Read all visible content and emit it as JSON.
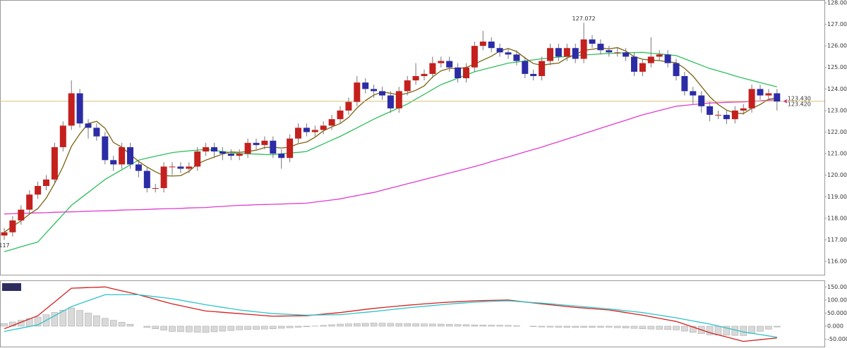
{
  "chart_data": [
    {
      "type": "candlestick",
      "ylim": [
        115.38,
        128.13
      ],
      "yticks": [
        {
          "value": 116,
          "label": "116.000"
        },
        {
          "value": 117,
          "label": "117.000"
        },
        {
          "value": 118,
          "label": "118.000"
        },
        {
          "value": 119,
          "label": "119.000"
        },
        {
          "value": 120,
          "label": "120.000"
        },
        {
          "value": 121,
          "label": "121.000"
        },
        {
          "value": 122,
          "label": "122.000"
        },
        {
          "value": 123,
          "label": "123.000"
        },
        {
          "value": 124,
          "label": "124.000"
        },
        {
          "value": 125,
          "label": "125.000"
        },
        {
          "value": 126,
          "label": "126.000"
        },
        {
          "value": 127,
          "label": "127.000"
        },
        {
          "value": 128,
          "label": "128.000"
        }
      ],
      "up_color": "#c4201e",
      "down_color": "#2c2ca6",
      "wick_color": "#777777",
      "open": [
        117.2,
        117.35,
        117.9,
        118.4,
        119.1,
        119.5,
        119.8,
        121.3,
        122.3,
        123.8,
        122.4,
        122.2,
        121.8,
        120.7,
        120.5,
        121.3,
        120.5,
        120.2,
        119.4,
        119.4,
        120.4,
        120.4,
        120.3,
        120.4,
        121.1,
        121.3,
        121.1,
        121.0,
        120.9,
        121.0,
        121.5,
        121.4,
        121.6,
        121.0,
        120.8,
        121.7,
        122.2,
        122.0,
        122.1,
        122.3,
        122.6,
        123.0,
        123.4,
        124.3,
        124.0,
        123.9,
        123.7,
        123.1,
        123.9,
        124.4,
        124.6,
        124.7,
        125.2,
        125.3,
        125.0,
        124.5,
        125.0,
        126.0,
        126.2,
        125.9,
        125.7,
        125.6,
        125.3,
        124.7,
        124.6,
        125.3,
        125.9,
        125.5,
        125.9,
        125.4,
        126.3,
        126.1,
        125.8,
        125.7,
        125.7,
        125.5,
        124.8,
        125.2,
        125.5,
        125.6,
        125.2,
        124.6,
        123.9,
        123.7,
        123.2,
        122.8,
        122.8,
        122.6,
        123.0,
        123.1,
        124.0,
        123.7,
        123.8
      ],
      "high": [
        117.55,
        118.1,
        118.6,
        119.3,
        119.7,
        120.0,
        121.5,
        122.5,
        124.4,
        124.0,
        122.6,
        122.4,
        122.0,
        120.9,
        121.5,
        121.5,
        120.7,
        120.4,
        119.6,
        120.6,
        120.6,
        120.6,
        120.6,
        121.3,
        121.5,
        121.5,
        121.3,
        121.2,
        121.2,
        121.7,
        121.7,
        121.8,
        121.8,
        121.2,
        121.9,
        122.4,
        122.4,
        122.3,
        122.5,
        122.8,
        123.2,
        123.6,
        124.6,
        124.5,
        124.2,
        124.1,
        123.9,
        124.1,
        124.6,
        125.2,
        124.9,
        125.5,
        125.5,
        125.5,
        125.2,
        125.2,
        126.2,
        126.7,
        126.4,
        126.1,
        125.9,
        125.8,
        125.5,
        124.9,
        125.5,
        126.1,
        126.1,
        126.1,
        126.1,
        127.072,
        126.5,
        126.3,
        126.0,
        125.9,
        125.9,
        125.7,
        125.4,
        126.4,
        125.8,
        125.8,
        125.4,
        124.8,
        124.1,
        123.9,
        123.4,
        123.0,
        123.0,
        123.2,
        123.3,
        124.2,
        124.2,
        124.0,
        124.0
      ],
      "low": [
        117.0,
        117.15,
        117.7,
        118.2,
        118.9,
        119.3,
        119.6,
        121.1,
        122.1,
        122.2,
        121.7,
        121.6,
        120.5,
        120.2,
        120.3,
        120.3,
        119.9,
        119.2,
        119.2,
        119.2,
        120.0,
        120.1,
        120.1,
        120.2,
        120.9,
        120.8,
        120.7,
        120.7,
        120.7,
        120.8,
        121.2,
        121.2,
        120.8,
        120.3,
        120.6,
        121.5,
        121.8,
        121.8,
        121.9,
        122.1,
        122.4,
        122.8,
        123.2,
        123.8,
        123.6,
        123.5,
        122.9,
        122.9,
        123.7,
        124.2,
        124.4,
        124.5,
        125.0,
        124.8,
        124.3,
        124.3,
        124.8,
        125.8,
        125.7,
        125.5,
        125.4,
        125.1,
        124.5,
        124.4,
        124.4,
        125.1,
        125.3,
        125.3,
        125.2,
        125.2,
        125.9,
        125.6,
        125.5,
        125.5,
        125.3,
        124.6,
        124.6,
        125.0,
        125.3,
        125.0,
        124.4,
        123.7,
        123.3,
        122.9,
        122.5,
        122.6,
        122.378,
        122.4,
        122.8,
        122.9,
        123.5,
        123.5,
        123.0
      ],
      "close": [
        117.35,
        117.9,
        118.4,
        119.1,
        119.5,
        119.8,
        121.3,
        122.3,
        123.8,
        122.4,
        122.2,
        121.8,
        120.7,
        120.5,
        121.3,
        120.5,
        120.2,
        119.4,
        119.4,
        120.4,
        120.4,
        120.3,
        120.4,
        121.1,
        121.3,
        121.1,
        121.0,
        120.9,
        121.0,
        121.5,
        121.4,
        121.6,
        121.0,
        120.8,
        121.7,
        122.2,
        122.0,
        122.1,
        122.3,
        122.6,
        123.0,
        123.4,
        124.3,
        124.0,
        123.9,
        123.7,
        123.1,
        123.9,
        124.4,
        124.6,
        124.7,
        125.2,
        125.3,
        125.0,
        124.5,
        125.0,
        126.0,
        126.2,
        125.9,
        125.7,
        125.6,
        125.3,
        124.7,
        124.6,
        125.3,
        125.9,
        125.5,
        125.9,
        125.4,
        126.3,
        126.1,
        125.8,
        125.7,
        125.7,
        125.5,
        124.8,
        125.2,
        125.5,
        125.6,
        125.2,
        124.6,
        123.9,
        123.7,
        123.2,
        122.8,
        122.8,
        122.6,
        123.0,
        123.1,
        124.0,
        123.7,
        123.8,
        123.42
      ],
      "lines": [
        {
          "color": "#2fbf5c",
          "values": [
            116.45,
            116.56,
            116.68,
            116.79,
            116.9,
            117.33,
            117.75,
            118.18,
            118.6,
            118.9,
            119.2,
            119.5,
            119.8,
            120.03,
            120.25,
            120.48,
            120.7,
            120.79,
            120.88,
            120.96,
            121.05,
            121.09,
            121.13,
            121.16,
            121.2,
            121.15,
            121.1,
            121.05,
            121.0,
            120.99,
            120.98,
            120.96,
            120.95,
            120.99,
            121.03,
            121.06,
            121.1,
            121.28,
            121.45,
            121.63,
            121.8,
            122.0,
            122.2,
            122.4,
            122.6,
            122.78,
            122.95,
            123.13,
            123.3,
            123.53,
            123.75,
            123.98,
            124.2,
            124.35,
            124.5,
            124.65,
            124.8,
            124.9,
            125.0,
            125.1,
            125.2,
            125.25,
            125.3,
            125.35,
            125.4,
            125.44,
            125.48,
            125.51,
            125.55,
            125.58,
            125.6,
            125.63,
            125.65,
            125.66,
            125.68,
            125.69,
            125.7,
            125.66,
            125.63,
            125.59,
            125.55,
            125.4,
            125.25,
            125.1,
            124.95,
            124.84,
            124.73,
            124.61,
            124.5,
            124.4,
            124.3,
            124.2,
            124.1
          ]
        },
        {
          "color": "#e03ccf",
          "values": [
            118.2,
            118.21,
            118.23,
            118.24,
            118.25,
            118.26,
            118.28,
            118.29,
            118.3,
            118.31,
            118.33,
            118.34,
            118.35,
            118.36,
            118.38,
            118.39,
            118.4,
            118.41,
            118.43,
            118.44,
            118.45,
            118.46,
            118.48,
            118.49,
            118.5,
            118.53,
            118.55,
            118.58,
            118.6,
            118.61,
            118.63,
            118.64,
            118.65,
            118.66,
            118.68,
            118.69,
            118.7,
            118.75,
            118.8,
            118.85,
            118.9,
            118.98,
            119.05,
            119.13,
            119.2,
            119.3,
            119.4,
            119.5,
            119.6,
            119.7,
            119.8,
            119.9,
            120.0,
            120.1,
            120.2,
            120.3,
            120.4,
            120.51,
            120.63,
            120.74,
            120.85,
            120.96,
            121.08,
            121.19,
            121.3,
            121.43,
            121.55,
            121.68,
            121.8,
            121.93,
            122.05,
            122.18,
            122.3,
            122.43,
            122.55,
            122.68,
            122.8,
            122.9,
            123.0,
            123.1,
            123.2,
            123.24,
            123.28,
            123.31,
            123.35,
            123.36,
            123.38,
            123.39,
            123.4,
            123.43,
            123.45,
            123.48,
            123.5
          ]
        },
        {
          "color": "#7a6410",
          "values": [
            117.35,
            117.63,
            117.88,
            118.19,
            118.45,
            118.94,
            119.62,
            120.4,
            121.34,
            121.92,
            122.4,
            122.5,
            122.18,
            121.52,
            121.3,
            120.96,
            120.64,
            120.38,
            120.16,
            119.98,
            119.96,
            119.98,
            120.18,
            120.52,
            120.7,
            120.84,
            120.98,
            121.08,
            121.06,
            121.1,
            121.16,
            121.28,
            121.3,
            121.26,
            121.3,
            121.46,
            121.54,
            121.76,
            122.06,
            122.24,
            122.4,
            122.68,
            123.12,
            123.46,
            123.72,
            123.86,
            123.8,
            123.72,
            123.8,
            123.94,
            124.14,
            124.56,
            124.84,
            124.96,
            124.94,
            125.0,
            125.16,
            125.34,
            125.52,
            125.76,
            125.88,
            125.74,
            125.44,
            125.18,
            125.1,
            125.16,
            125.2,
            125.44,
            125.6,
            125.8,
            125.84,
            125.9,
            125.86,
            125.92,
            125.76,
            125.5,
            125.38,
            125.34,
            125.32,
            125.26,
            125.22,
            124.96,
            124.6,
            124.12,
            123.64,
            123.28,
            123.02,
            122.88,
            122.86,
            123.1,
            123.28,
            123.52,
            123.6
          ]
        }
      ],
      "price_line_color": "#d9c07a",
      "price_labels": [
        {
          "value": 123.43,
          "label": "123.430",
          "color": "#d03c8c"
        },
        {
          "value": 123.42,
          "label": "123.420",
          "color": "#2aa8b8"
        }
      ],
      "extreme_colors": {
        "high": "#c47a2c",
        "low": "#2a9a3a"
      }
    },
    {
      "type": "macd",
      "title": "MACD",
      "ylim": [
        -78,
        175
      ],
      "yticks": [
        {
          "value": -50,
          "label": "-50.0000"
        },
        {
          "value": 0,
          "label": "0.000"
        },
        {
          "value": 50,
          "label": "50.0000"
        },
        {
          "value": 100,
          "label": "100.0000"
        },
        {
          "value": 150,
          "label": "150.0000"
        }
      ],
      "histogram": {
        "color": "#d9d9d9",
        "values": [
          10,
          16.25,
          22.5,
          28.75,
          35,
          43.75,
          52.5,
          61.25,
          70,
          60,
          50,
          40,
          30,
          22.5,
          15,
          7.5,
          0,
          -5,
          -10,
          -15,
          -20,
          -21,
          -22,
          -23,
          -24,
          -21.5,
          -19,
          -16.5,
          -14,
          -13,
          -12,
          -11,
          -10,
          -8,
          -6,
          -4,
          -2,
          0.5,
          3,
          5.5,
          8,
          9,
          10,
          11,
          12,
          11.5,
          11,
          10.5,
          10,
          9.5,
          9,
          8.5,
          8,
          7.25,
          6.5,
          5.75,
          5,
          4.5,
          4,
          3.5,
          3,
          1.5,
          0,
          -1.5,
          -3,
          -3.5,
          -4,
          -4.5,
          -5,
          -4.75,
          -4.5,
          -4.25,
          -4,
          -5.5,
          -7,
          -8.5,
          -10,
          -11,
          -12,
          -13,
          -14,
          -18.75,
          -23.5,
          -28.25,
          -33,
          -33.75,
          -34.5,
          -35.25,
          -36,
          -27.75,
          -19.5,
          -11.25,
          -3
        ]
      },
      "series": [
        {
          "color": "#d42020",
          "values": [
            -10,
            2.5,
            15,
            27.5,
            40,
            66.25,
            92.5,
            118.75,
            145,
            146.25,
            147.5,
            148.75,
            150,
            142.5,
            135,
            127.5,
            120,
            111.25,
            102.5,
            93.75,
            85,
            78.25,
            71.5,
            64.75,
            58,
            55.5,
            53,
            50.5,
            48,
            45.5,
            43,
            40.5,
            38,
            38.5,
            39,
            39.5,
            40,
            43,
            46,
            49,
            52,
            56,
            60,
            64,
            68,
            71,
            74,
            77,
            80,
            82.5,
            85,
            87.5,
            90,
            91.75,
            93.5,
            95.25,
            97,
            97.75,
            98.5,
            99.25,
            100,
            96.25,
            92.5,
            88.75,
            85,
            81.75,
            78.5,
            75.25,
            72,
            69.5,
            67,
            64.5,
            62,
            57,
            52,
            47,
            42,
            36,
            30,
            24,
            18,
            7.25,
            -3.5,
            -14.25,
            -25,
            -33.25,
            -41.5,
            -49.75,
            -58,
            -54.75,
            -51.5,
            -48.25,
            -45
          ]
        },
        {
          "color": "#2ec4c8",
          "values": [
            -20,
            -13.75,
            -7.5,
            -1.25,
            5,
            22.5,
            40,
            57.5,
            75,
            86.25,
            97.5,
            108.75,
            120,
            120,
            120,
            120,
            120,
            116.25,
            112.5,
            108.75,
            105,
            99.25,
            93.5,
            87.75,
            82,
            77,
            72,
            67,
            62,
            58.5,
            55,
            51.5,
            48,
            46.5,
            45,
            43.5,
            42,
            42.5,
            43,
            43.5,
            44,
            47,
            50,
            53,
            56,
            59.5,
            63,
            66.5,
            70,
            73,
            76,
            79,
            82,
            84.5,
            87,
            89.5,
            92,
            93.25,
            94.5,
            95.75,
            97,
            94.75,
            92.5,
            90.25,
            88,
            85.25,
            82.5,
            79.75,
            77,
            74.25,
            71.5,
            68.75,
            66,
            62.5,
            59,
            55.5,
            52,
            47,
            42,
            37,
            32,
            26,
            20,
            14,
            8,
            0.5,
            -7,
            -14.5,
            -22,
            -27,
            -32,
            -37,
            -42
          ]
        }
      ]
    }
  ]
}
